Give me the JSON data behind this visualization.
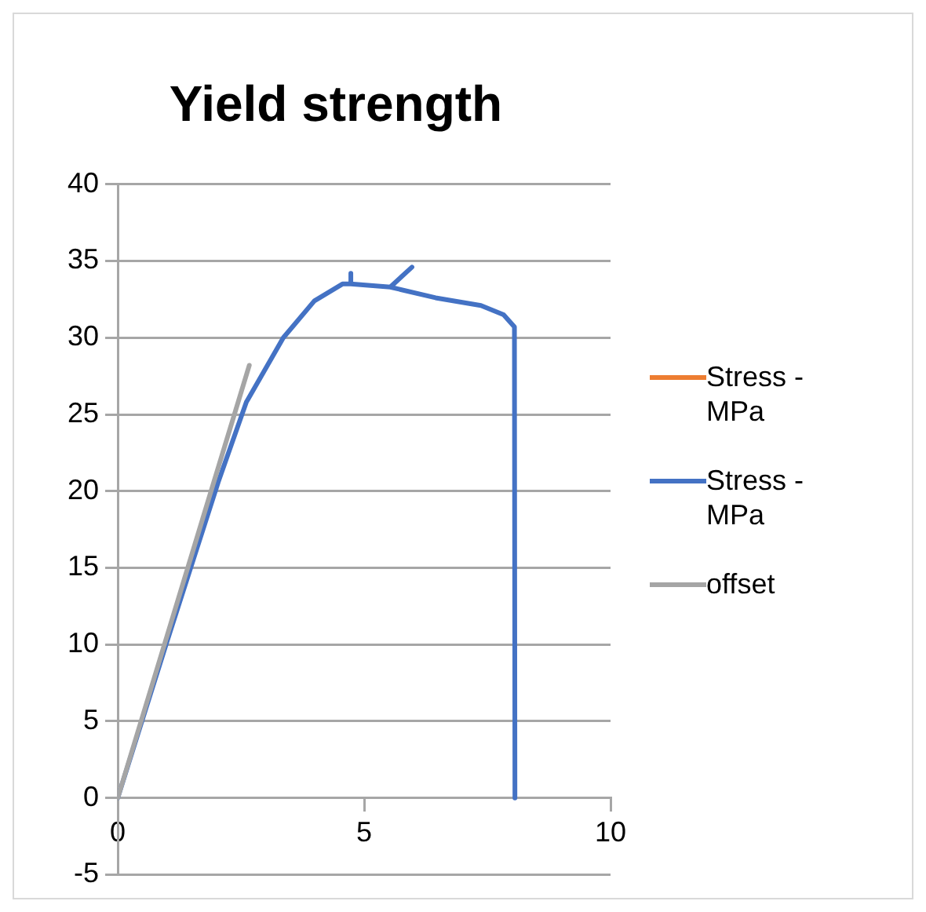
{
  "chart_data": {
    "type": "line",
    "title": "Yield strength",
    "xlim": [
      0,
      10
    ],
    "xticks": [
      0,
      5,
      10
    ],
    "ylim": [
      -5,
      40
    ],
    "yticks": [
      -5,
      0,
      5,
      10,
      15,
      20,
      25,
      30,
      35,
      40
    ],
    "grid": "y",
    "legend": "right",
    "series": [
      {
        "name": "Stress - MPa",
        "color": "#ed7d31"
      },
      {
        "name": "Stress - MPa",
        "color": "#4472c4",
        "x": [
          0,
          1,
          2.04,
          2.61,
          3.36,
          3.99,
          4.56,
          4.73,
          4.73,
          4.73,
          5.53,
          5.97,
          5.53,
          6.45,
          7.37,
          7.83,
          8.05,
          8.06
        ],
        "values": [
          0,
          10.2,
          20.6,
          25.8,
          30.0,
          32.4,
          33.5,
          33.5,
          34.2,
          33.5,
          33.3,
          34.6,
          33.3,
          32.6,
          32.1,
          31.5,
          30.7,
          0
        ]
      },
      {
        "name": "offset",
        "color": "#a5a5a5",
        "x": [
          0,
          2.67
        ],
        "values": [
          0,
          28.2
        ]
      }
    ]
  }
}
